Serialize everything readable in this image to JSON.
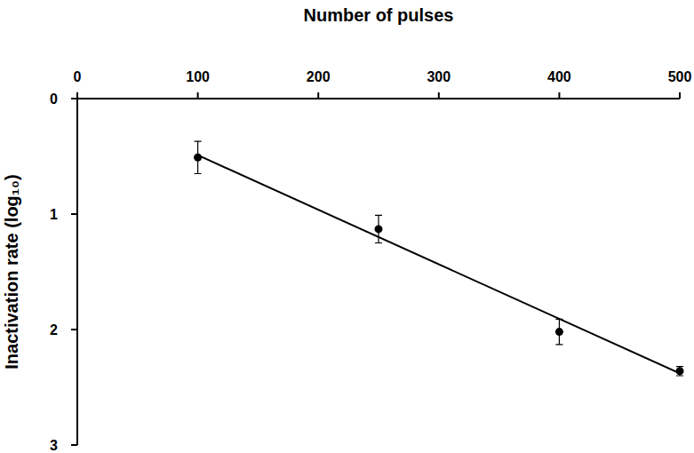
{
  "chart_data": {
    "type": "scatter",
    "x_label": "Number of pulses",
    "y_label": "Inactivation  rate (log₁₀)",
    "xlim": [
      0,
      500
    ],
    "xticks": [
      0,
      100,
      200,
      300,
      400,
      500
    ],
    "ylim": [
      0,
      3
    ],
    "yticks": [
      0,
      1,
      2,
      3
    ],
    "grid": false,
    "series": [
      {
        "type": "scatter",
        "color": "#000000",
        "marker": "circle",
        "x": [
          100,
          250,
          400,
          500
        ],
        "values": [
          0.51,
          1.13,
          2.02,
          2.36
        ],
        "errors": [
          0.14,
          0.12,
          0.11,
          0.04
        ]
      },
      {
        "type": "line",
        "color": "#000000",
        "line_style": "solid",
        "x": [
          100,
          500
        ],
        "values": [
          0.49,
          2.38
        ]
      }
    ]
  }
}
